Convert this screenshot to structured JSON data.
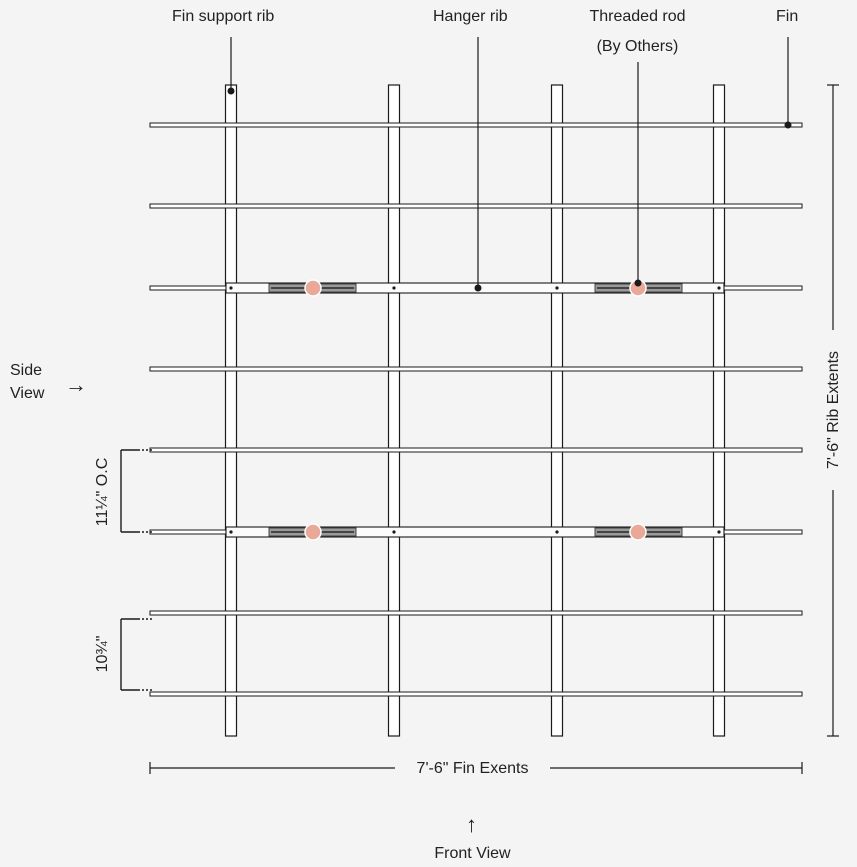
{
  "callouts": {
    "fin_support_rib": "Fin support rib",
    "hanger_rib": "Hanger rib",
    "threaded_rod_line1": "Threaded rod",
    "threaded_rod_line2": "(By Others)",
    "fin": "Fin"
  },
  "dimensions": {
    "rib_extents": "7'-6\" Rib Extents",
    "fin_extents": "7'-6\" Fin Exents",
    "fin_spacing_oc": "11¼\" O.C",
    "fin_gap": "10¾\""
  },
  "views": {
    "side_line1": "Side",
    "side_line2": "View",
    "side_arrow": "→",
    "front": "Front View",
    "front_arrow": "↑"
  },
  "colors": {
    "background": "#f4f4f4",
    "line": "#1a1a1a",
    "rib_fill": "#ffffff",
    "rod_marker": "#e9a898",
    "bracket_dark": "#444444"
  }
}
